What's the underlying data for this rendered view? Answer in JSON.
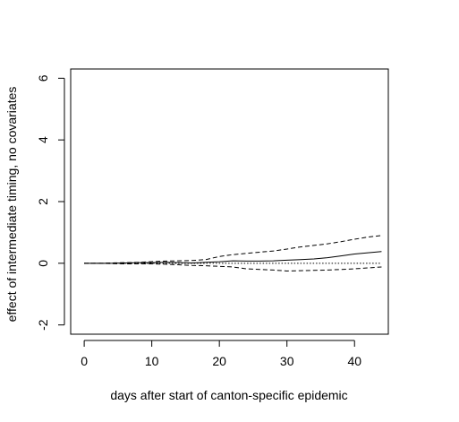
{
  "chart_data": {
    "type": "line",
    "title": "",
    "xlabel": "days after start of canton-specific epidemic",
    "ylabel": "effect of intermediate timing, no covariates",
    "xlim": [
      -2,
      45
    ],
    "ylim": [
      -2.3,
      6.3
    ],
    "x_ticks": [
      0,
      10,
      20,
      30,
      40
    ],
    "y_ticks": [
      -2,
      0,
      2,
      4,
      6
    ],
    "grid": false,
    "legend": "none",
    "reference_line": {
      "y": 0,
      "style": "dotted"
    },
    "x": [
      0,
      2,
      4,
      6,
      8,
      10,
      12,
      14,
      16,
      18,
      20,
      22,
      24,
      26,
      28,
      30,
      32,
      34,
      36,
      38,
      40,
      42,
      44
    ],
    "series": [
      {
        "role": "estimate",
        "style": "solid",
        "values": [
          0,
          0,
          0,
          0.01,
          0.02,
          0.02,
          0.03,
          0.02,
          0.01,
          0.03,
          0.05,
          0.08,
          0.07,
          0.07,
          0.08,
          0.1,
          0.12,
          0.14,
          0.18,
          0.24,
          0.3,
          0.34,
          0.38
        ]
      },
      {
        "role": "upper-bound",
        "style": "dashed",
        "values": [
          0,
          0,
          0.01,
          0.02,
          0.03,
          0.05,
          0.07,
          0.08,
          0.09,
          0.12,
          0.22,
          0.28,
          0.32,
          0.36,
          0.4,
          0.46,
          0.53,
          0.58,
          0.63,
          0.7,
          0.78,
          0.85,
          0.9
        ]
      },
      {
        "role": "lower-bound",
        "style": "dashed",
        "values": [
          0,
          0,
          -0.01,
          -0.02,
          -0.02,
          -0.02,
          -0.03,
          -0.05,
          -0.07,
          -0.08,
          -0.1,
          -0.12,
          -0.18,
          -0.2,
          -0.22,
          -0.25,
          -0.24,
          -0.23,
          -0.22,
          -0.2,
          -0.18,
          -0.15,
          -0.12
        ]
      }
    ]
  }
}
